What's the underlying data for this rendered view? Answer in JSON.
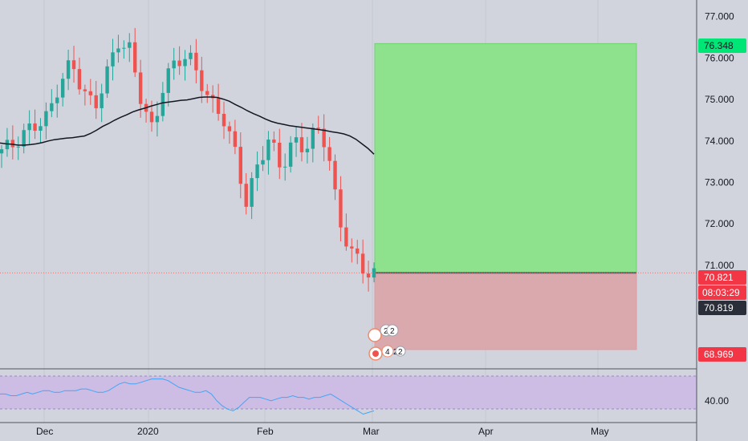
{
  "colors": {
    "background": "#d1d4dc",
    "grid": "#c4c7cf",
    "up": "#26a69a",
    "down": "#ef5350",
    "ma": "#131722",
    "target_zone": "#8ee28e",
    "stop_zone": "#d9a9ad",
    "rsi_band": "#cdbde4",
    "rsi_line": "#42a5f5",
    "label_green": "#00e676",
    "label_red": "#f23645",
    "label_dark": "#2a2e39"
  },
  "chart_data": {
    "type": "candlestick",
    "price_axis": {
      "ticks": [
        "77.000",
        "76.000",
        "75.000",
        "74.000",
        "73.000",
        "72.000",
        "71.000"
      ],
      "ylim": [
        68.6,
        77.4
      ]
    },
    "time_axis": {
      "ticks": [
        "Dec",
        "2020",
        "Feb",
        "Mar",
        "Apr",
        "May"
      ]
    },
    "moving_average": [
      73.95,
      73.93,
      73.92,
      73.9,
      73.9,
      73.91,
      73.93,
      73.96,
      74.0,
      74.03,
      74.05,
      74.07,
      74.08,
      74.1,
      74.12,
      74.18,
      74.26,
      74.35,
      74.42,
      74.5,
      74.57,
      74.63,
      74.7,
      74.75,
      74.79,
      74.84,
      74.88,
      74.92,
      74.94,
      74.96,
      74.98,
      74.99,
      75.02,
      75.05,
      75.06,
      75.06,
      75.05,
      75.01,
      74.96,
      74.88,
      74.81,
      74.73,
      74.66,
      74.6,
      74.53,
      74.47,
      74.43,
      74.4,
      74.37,
      74.35,
      74.33,
      74.31,
      74.29,
      74.27,
      74.25,
      74.22,
      74.2,
      74.17,
      74.12,
      74.04,
      73.93,
      73.82,
      73.68
    ],
    "rsi": {
      "ticks": [
        "40.00"
      ],
      "values": [
        47,
        47,
        46,
        46,
        47,
        48,
        47,
        48,
        49,
        49,
        48,
        48,
        49,
        49,
        49,
        50,
        50,
        49,
        48,
        48,
        49,
        51,
        53,
        54,
        53,
        53,
        54,
        55,
        56,
        56,
        56,
        55,
        53,
        51,
        50,
        49,
        48,
        48,
        49,
        47,
        43,
        40,
        38,
        37,
        39,
        42,
        45,
        45,
        45,
        44,
        43,
        44,
        45,
        45,
        46,
        45,
        45,
        44,
        45,
        45,
        46,
        47,
        45,
        43,
        41,
        39,
        37,
        35,
        36,
        37
      ]
    },
    "position": {
      "entry": 70.82,
      "target": 76.348,
      "stop": 68.969
    }
  },
  "labels": {
    "target_price": "76.348",
    "current_price": "70.821",
    "countdown": "08:03:29",
    "entry_price": "70.819",
    "stop_price": "68.969",
    "event_badge_1": "2",
    "event_badge_2": "2",
    "event_badge_3": "4",
    "event_badge_4": "2",
    "event_badge_5": "2"
  }
}
